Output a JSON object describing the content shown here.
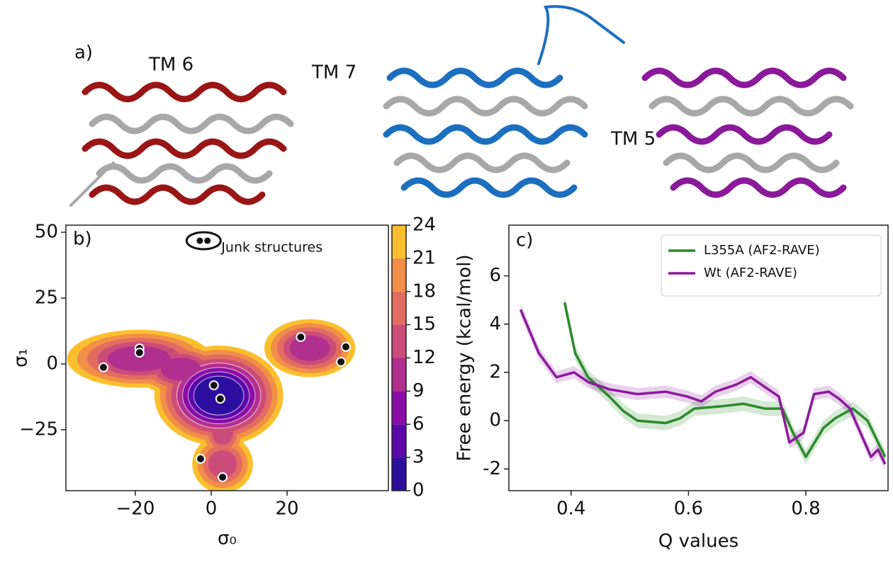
{
  "panel_a": {
    "label": "a)",
    "annotations": [
      "TM 6",
      "TM 7",
      "TM 5"
    ]
  },
  "chart_data": [
    {
      "type": "contour",
      "label": "b)",
      "xlabel": "σ₀",
      "ylabel": "σ₁",
      "xlim": [
        -38.3,
        46.7
      ],
      "ylim": [
        -48.1,
        52.7
      ],
      "xticks": [
        {
          "value": -20,
          "label": "−20"
        },
        0,
        20
      ],
      "yticks": [
        {
          "value": -25,
          "label": "−25"
        },
        0,
        25,
        50
      ],
      "points": {
        "x": [
          -28.4,
          -18.9,
          -18.9,
          0.7,
          2.4,
          -2.8,
          3.0,
          23.6,
          35.5,
          34.2
        ],
        "y": [
          -1.3,
          5.9,
          4.3,
          -8.1,
          -13.2,
          -36.0,
          -43.0,
          10.2,
          6.5,
          0.8
        ]
      },
      "junk": {
        "text": "Junk structures",
        "x": [
          -3.0,
          -1.0
        ],
        "y": [
          46.8,
          46.8
        ]
      },
      "colorbar": {
        "lim": [
          0,
          24
        ],
        "ticks": [
          0,
          3,
          6,
          9,
          12,
          15,
          18,
          21,
          24
        ],
        "colors": [
          "#2c0f9e",
          "#5c08a9",
          "#8a0da5",
          "#b12f8f",
          "#cc4c79",
          "#e26c61",
          "#f18f48",
          "#fbbf2e"
        ]
      }
    },
    {
      "type": "line",
      "label": "c)",
      "xlabel": "Q values",
      "ylabel": "Free energy (kcal/mol)",
      "xlim": [
        0.294,
        0.94
      ],
      "ylim": [
        -2.9,
        8.1
      ],
      "xticks": [
        0.4,
        0.6,
        0.8
      ],
      "yticks": [
        {
          "value": -2,
          "label": "-2"
        },
        0,
        2,
        4,
        6
      ],
      "legend": "upper right",
      "series": [
        {
          "name": "L355A (AF2-RAVE)",
          "color": "#2a8a2a",
          "error": 0.3,
          "x": [
            0.389,
            0.407,
            0.429,
            0.465,
            0.489,
            0.513,
            0.561,
            0.586,
            0.61,
            0.658,
            0.694,
            0.73,
            0.76,
            0.778,
            0.8,
            0.83,
            0.85,
            0.88,
            0.905,
            0.935
          ],
          "values": [
            4.9,
            2.8,
            1.8,
            1.0,
            0.4,
            0.0,
            -0.1,
            0.1,
            0.5,
            0.6,
            0.7,
            0.5,
            0.5,
            -0.5,
            -1.5,
            -0.3,
            0.1,
            0.5,
            0.0,
            -1.5
          ]
        },
        {
          "name": "Wt (AF2-RAVE)",
          "color": "#8b1a9b",
          "error": 0.25,
          "x": [
            0.314,
            0.345,
            0.375,
            0.405,
            0.429,
            0.465,
            0.513,
            0.561,
            0.598,
            0.622,
            0.646,
            0.682,
            0.706,
            0.73,
            0.754,
            0.772,
            0.796,
            0.814,
            0.839,
            0.857,
            0.875,
            0.893,
            0.911,
            0.923,
            0.935
          ],
          "values": [
            4.6,
            2.8,
            1.8,
            2.0,
            1.6,
            1.3,
            1.1,
            1.2,
            1.0,
            0.8,
            1.2,
            1.5,
            1.8,
            1.4,
            1.0,
            -0.9,
            -0.5,
            1.1,
            1.2,
            0.9,
            0.5,
            -0.5,
            -1.5,
            -1.2,
            -1.8
          ]
        }
      ]
    }
  ]
}
